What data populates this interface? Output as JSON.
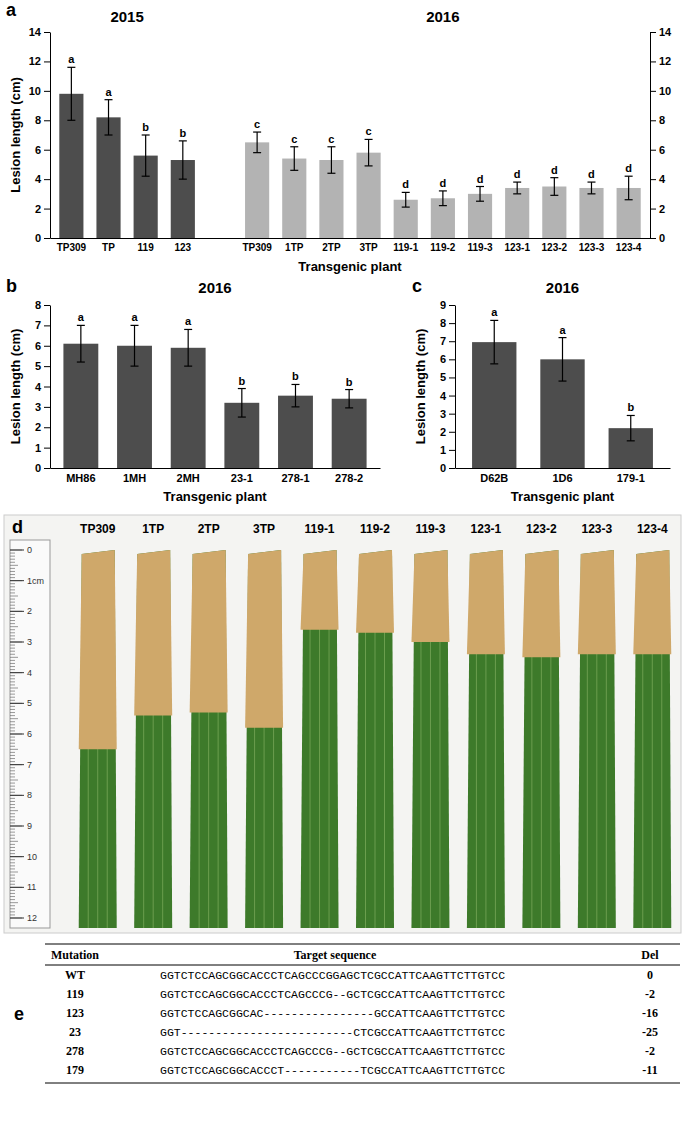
{
  "chart_data": [
    {
      "type": "bar",
      "panel": "a",
      "ylabel": "Lesion length (cm)",
      "xlabel": "Transgenic plant",
      "categories": [
        "TP309",
        "TP",
        "119",
        "123",
        null,
        "TP309",
        "1TP",
        "2TP",
        "3TP",
        "119-1",
        "119-2",
        "119-3",
        "123-1",
        "123-2",
        "123-3",
        "123-4"
      ],
      "series": [
        {
          "name": "2015",
          "color": "#4d4d4d",
          "values": [
            9.8,
            8.2,
            5.6,
            5.3,
            null,
            null,
            null,
            null,
            null,
            null,
            null,
            null,
            null,
            null,
            null,
            null
          ],
          "errors": [
            1.8,
            1.2,
            1.4,
            1.3,
            null,
            null,
            null,
            null,
            null,
            null,
            null,
            null,
            null,
            null,
            null,
            null
          ],
          "letters": [
            "a",
            "a",
            "b",
            "b",
            null,
            null,
            null,
            null,
            null,
            null,
            null,
            null,
            null,
            null,
            null,
            null
          ]
        },
        {
          "name": "2016",
          "color": "#b3b3b3",
          "values": [
            null,
            null,
            null,
            null,
            null,
            6.5,
            5.4,
            5.3,
            5.8,
            2.6,
            2.7,
            3.0,
            3.4,
            3.5,
            3.4,
            3.4
          ],
          "errors": [
            null,
            null,
            null,
            null,
            null,
            0.7,
            0.8,
            0.9,
            0.9,
            0.5,
            0.5,
            0.5,
            0.4,
            0.6,
            0.4,
            0.8
          ],
          "letters": [
            null,
            null,
            null,
            null,
            null,
            "c",
            "c",
            "c",
            "c",
            "d",
            "d",
            "d",
            "d",
            "d",
            "d",
            "d"
          ]
        }
      ],
      "ylim": [
        0,
        14
      ],
      "yticks": [
        0,
        2,
        4,
        6,
        8,
        10,
        12,
        14
      ],
      "y2lim": [
        0,
        14
      ],
      "y2ticks": [
        0,
        2,
        4,
        6,
        8,
        10,
        12,
        14
      ]
    },
    {
      "type": "bar",
      "panel": "b",
      "title": "2016",
      "ylabel": "Lesion length (cm)",
      "xlabel": "Transgenic plant",
      "categories": [
        "MH86",
        "1MH",
        "2MH",
        "23-1",
        "278-1",
        "278-2"
      ],
      "values": [
        6.1,
        6.0,
        5.9,
        3.2,
        3.55,
        3.4
      ],
      "errors": [
        0.9,
        1.0,
        0.9,
        0.7,
        0.55,
        0.45
      ],
      "letters": [
        "a",
        "a",
        "a",
        "b",
        "b",
        "b"
      ],
      "color": "#4d4d4d",
      "ylim": [
        0,
        8
      ],
      "yticks": [
        0,
        1,
        2,
        3,
        4,
        5,
        6,
        7,
        8
      ]
    },
    {
      "type": "bar",
      "panel": "c",
      "title": "2016",
      "ylabel": "Lesion length (cm)",
      "xlabel": "Transgenic plant",
      "categories": [
        "D62B",
        "1D6",
        "179-1"
      ],
      "values": [
        6.95,
        6.0,
        2.2
      ],
      "errors": [
        1.2,
        1.2,
        0.7
      ],
      "letters": [
        "a",
        "a",
        "b"
      ],
      "color": "#4d4d4d",
      "ylim": [
        0,
        9
      ],
      "yticks": [
        0,
        1,
        2,
        3,
        4,
        5,
        6,
        7,
        8,
        9
      ]
    }
  ],
  "photo": {
    "panel": "d",
    "labels": [
      "TP309",
      "1TP",
      "2TP",
      "3TP",
      "119-1",
      "119-2",
      "119-3",
      "123-1",
      "123-2",
      "123-3",
      "123-4"
    ],
    "ruler": {
      "range": [
        0,
        12
      ],
      "ticks": [
        0,
        {
          "value": 1,
          "label": "1cm"
        },
        2,
        3,
        4,
        5,
        6,
        7,
        8,
        9,
        10,
        11,
        12
      ]
    }
  },
  "table": {
    "panel": "e",
    "header": [
      "Mutation",
      "Target sequence",
      "Del"
    ],
    "rows": [
      [
        "WT",
        "GGTCTCCAGCGGCACCCTCAGCCCGGAGCTCGCCATTCAAGTTCTTGTCC",
        0
      ],
      [
        "119",
        "GGTCTCCAGCGGCACCCTCAGCCCG--GCTCGCCATTCAAGTTCTTGTCC",
        -2
      ],
      [
        "123",
        "GGTCTCCAGCGGCAC----------------GCCATTCAAGTTCTTGTCC",
        -16
      ],
      [
        "23",
        "GGT-------------------------CTCGCCATTCAAGTTCTTGTCC",
        -25
      ],
      [
        "278",
        "GGTCTCCAGCGGCACCCTCAGCCCG--GCTCGCCATTCAAGTTCTTGTCC",
        -2
      ],
      [
        "179",
        "GGTCTCCAGCGGCACCCT-----------TCGCCATTCAAGTTCTTGTCC",
        -11
      ]
    ]
  }
}
